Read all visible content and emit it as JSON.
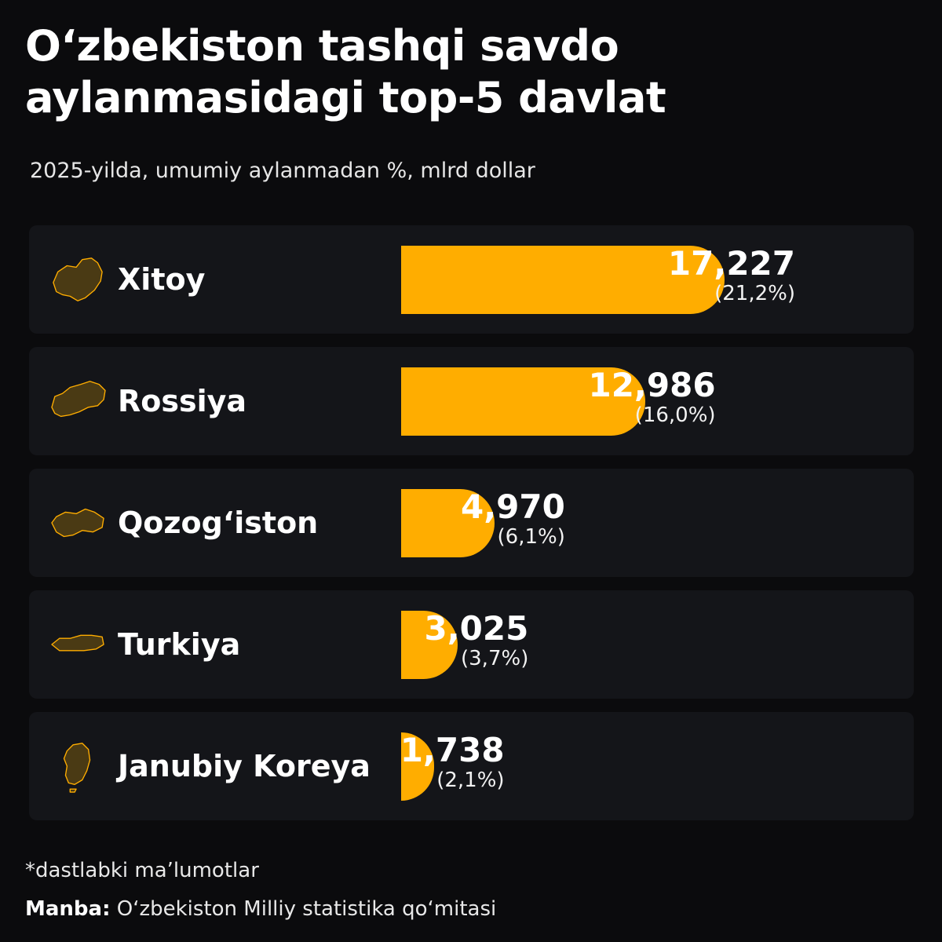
{
  "header": {
    "title": "O‘zbekiston tashqi savdo aylanmasidagi top-5 davlat",
    "subtitle": "2025-yilda, umumiy aylanmadan %, mlrd dollar"
  },
  "colors": {
    "bar": "#ffad00",
    "map_fill": "#4a3a14",
    "map_stroke": "#ffad00"
  },
  "chart_data": {
    "type": "bar",
    "orientation": "horizontal",
    "title": "O‘zbekiston tashqi savdo aylanmasidagi top-5 davlat",
    "subtitle": "2025-yilda, umumiy aylanmadan %, mlrd dollar",
    "categories": [
      "Xitoy",
      "Rossiya",
      "Qozog‘iston",
      "Turkiya",
      "Janubiy Koreya"
    ],
    "values": [
      17.227,
      12.986,
      4.97,
      3.025,
      1.738
    ],
    "value_labels": [
      "17,227",
      "12,986",
      "4,970",
      "3,025",
      "1,738"
    ],
    "percent_labels": [
      "(21,2%)",
      "(16,0%)",
      "(6,1%)",
      "(3,7%)",
      "(2,1%)"
    ],
    "icons": [
      "china-map-icon",
      "russia-map-icon",
      "kazakhstan-map-icon",
      "turkey-map-icon",
      "south-korea-map-icon"
    ],
    "xlim": [
      0,
      17.227
    ],
    "grid": false,
    "legend": "none"
  },
  "footer": {
    "note": "*dastlabki ma’lumotlar",
    "source_label": "Manba:",
    "source_text": "O‘zbekiston Milliy statistika qo‘mitasi"
  }
}
